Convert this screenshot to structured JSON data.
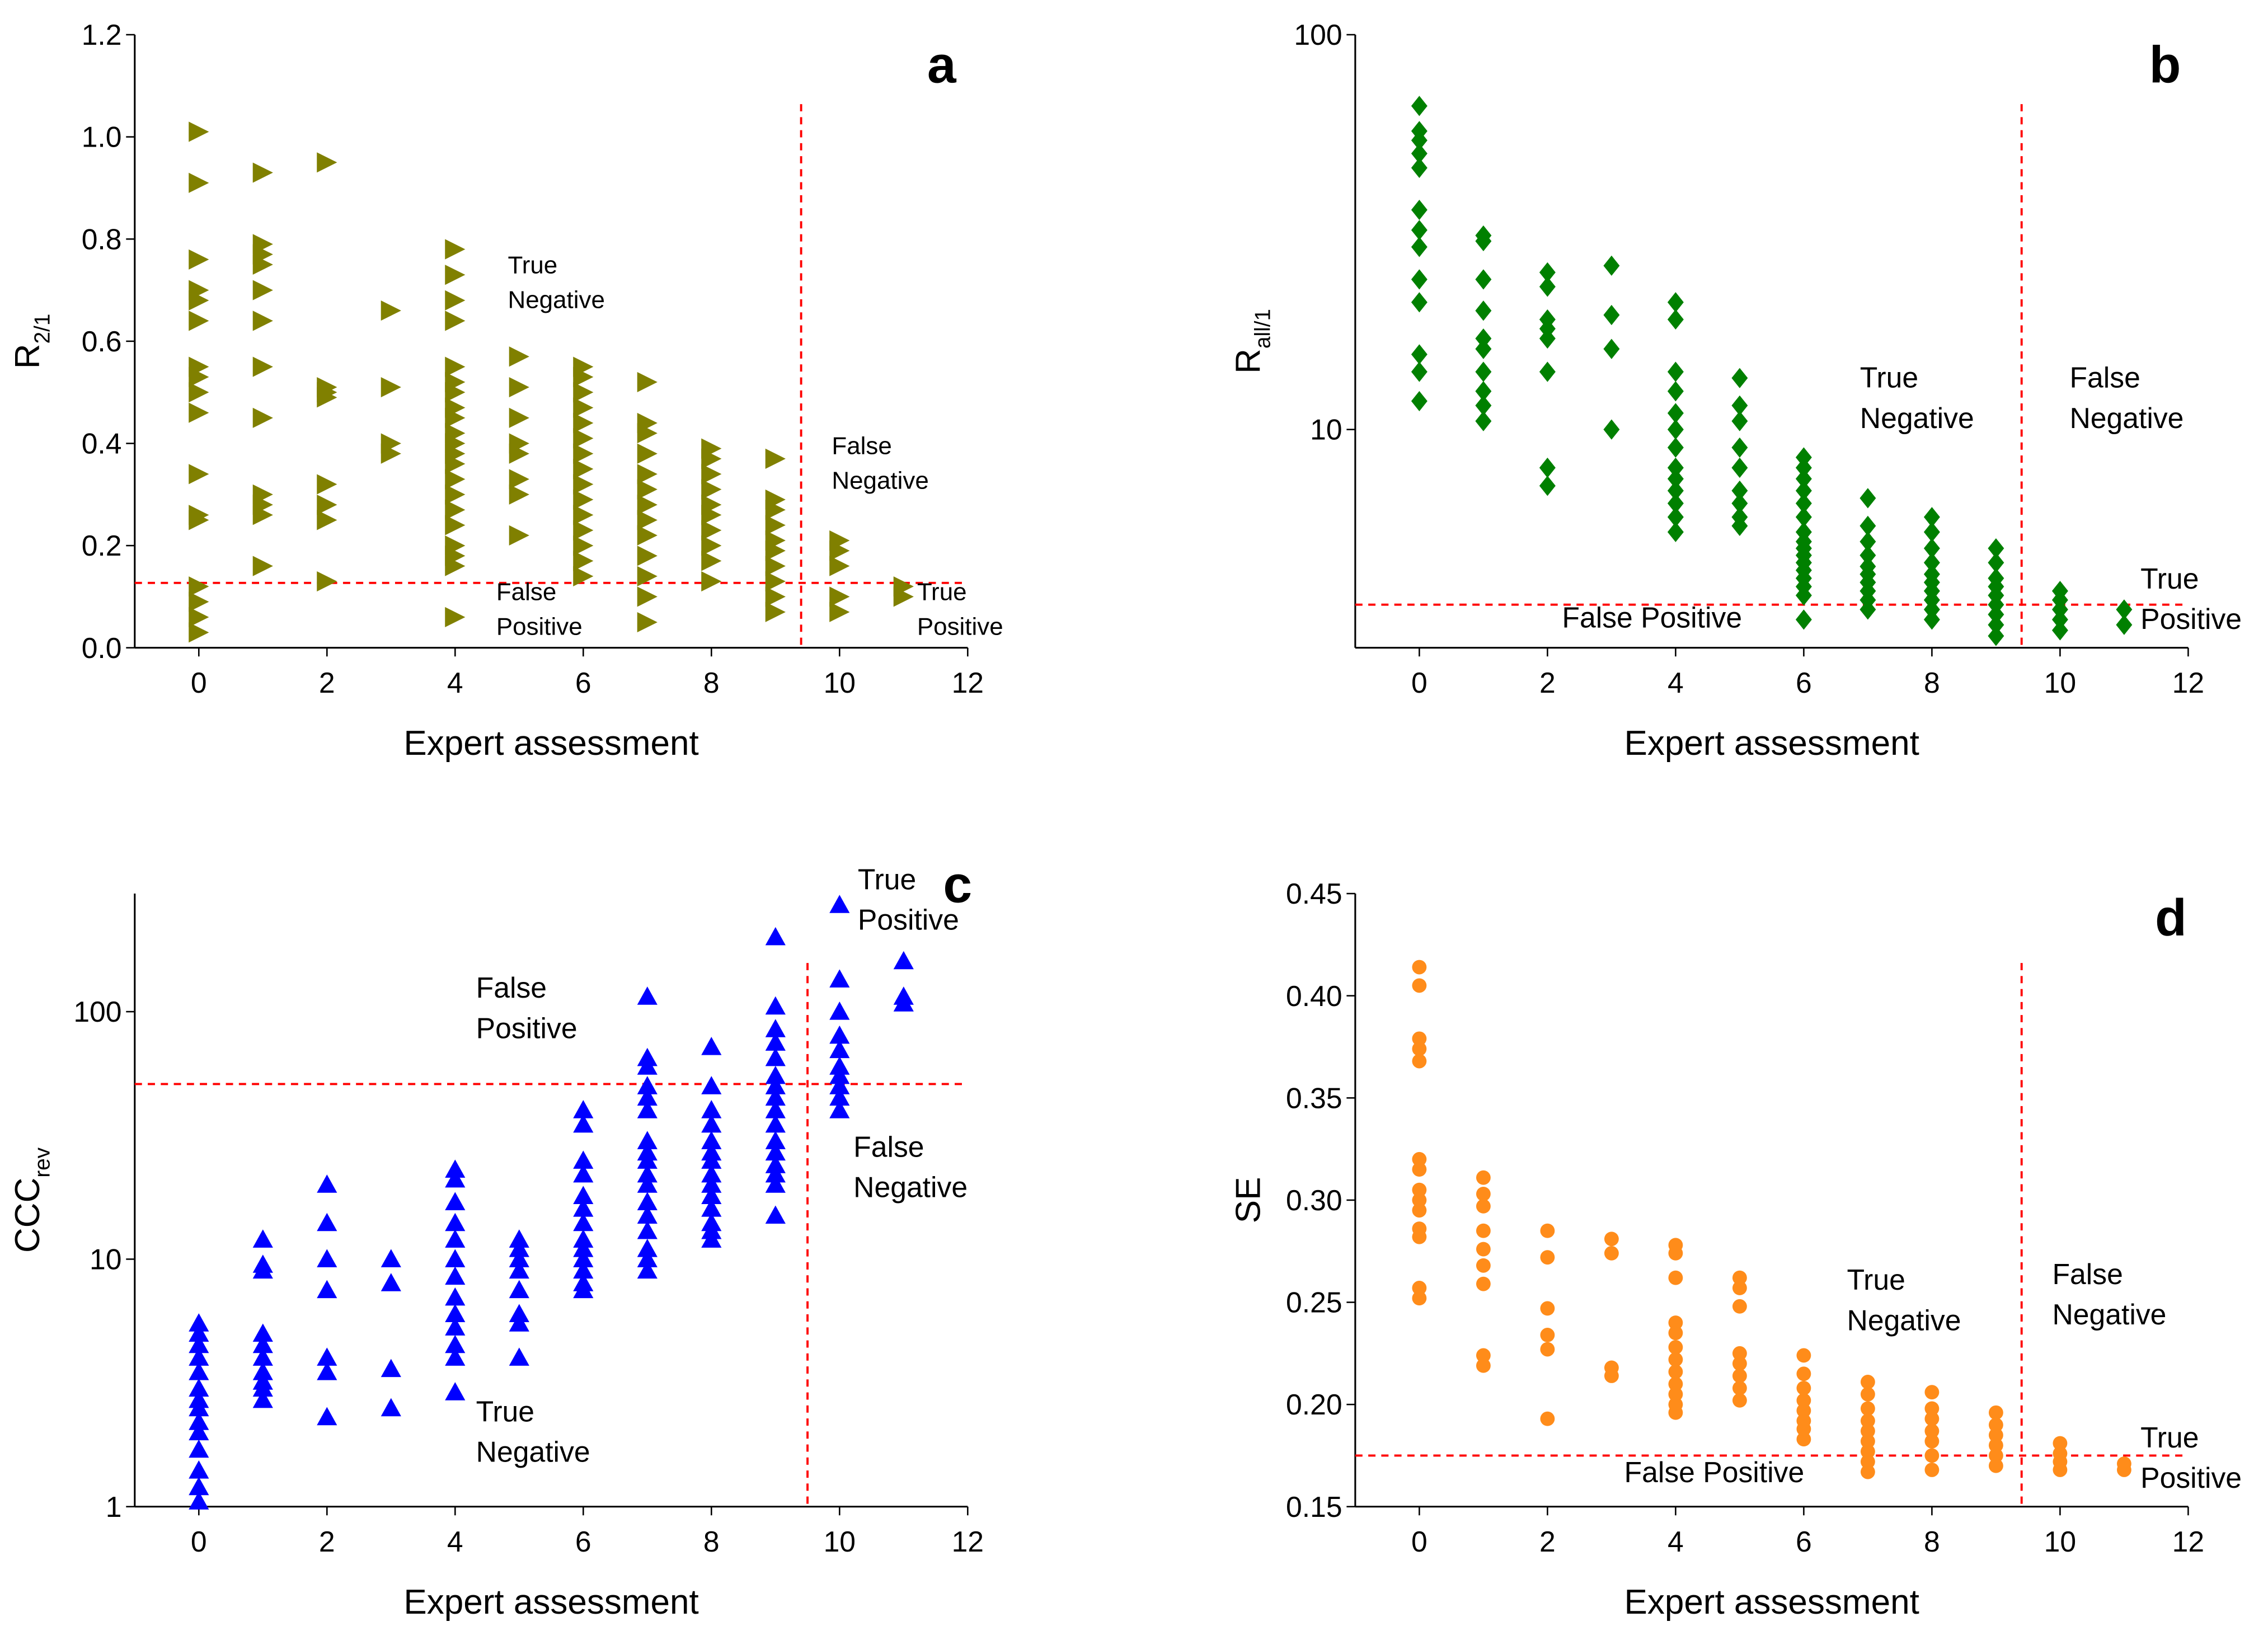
{
  "chart_data": [
    {
      "type": "scatter",
      "label": "a",
      "xlabel": "Expert assessment",
      "ylabel": "R",
      "ylabel_sub": "2/1",
      "marker": "triangle-right",
      "color": "#808000",
      "line_color": "#ff0000",
      "xlim": [
        -1,
        12
      ],
      "xticks": [
        0,
        2,
        4,
        6,
        8,
        10,
        12
      ],
      "ylim": [
        0,
        1.2
      ],
      "yticks": [
        {
          "value": 0,
          "label": "0.0"
        },
        0.2,
        0.4,
        0.6,
        0.8,
        {
          "value": 1,
          "label": "1.0"
        },
        1.2
      ],
      "log": false,
      "hline": 0.127,
      "vline": 9.4,
      "annotations": [
        {
          "lines": [
            "True",
            "Negative"
          ]
        },
        {
          "lines": [
            "False",
            "Negative"
          ]
        },
        {
          "lines": [
            "False",
            "Positive"
          ]
        },
        {
          "lines": [
            "True",
            "Positive"
          ]
        }
      ],
      "x": [
        0,
        0,
        0,
        0,
        0,
        0,
        0,
        0,
        0,
        0,
        0,
        0,
        0,
        0,
        0,
        0,
        0,
        1,
        1,
        1,
        1,
        1,
        1,
        1,
        1,
        1,
        1,
        1,
        1,
        2,
        2,
        2,
        2,
        2,
        2,
        2,
        2,
        3,
        3,
        3,
        3,
        4,
        4,
        4,
        4,
        4,
        4,
        4,
        4,
        4,
        4,
        4,
        4,
        4,
        4,
        4,
        4,
        4,
        4,
        4,
        4,
        4,
        5,
        5,
        5,
        5,
        5,
        5,
        5,
        5,
        6,
        6,
        6,
        6,
        6,
        6,
        6,
        6,
        6,
        6,
        6,
        6,
        6,
        6,
        6,
        7,
        7,
        7,
        7,
        7,
        7,
        7,
        7,
        7,
        7,
        7,
        7,
        7,
        8,
        8,
        8,
        8,
        8,
        8,
        8,
        8,
        8,
        8,
        9,
        9,
        9,
        9,
        9,
        9,
        9,
        9,
        9,
        9,
        10,
        10,
        10,
        10,
        10,
        11,
        11
      ],
      "y": [
        1.01,
        0.91,
        0.76,
        0.7,
        0.68,
        0.64,
        0.55,
        0.53,
        0.5,
        0.46,
        0.34,
        0.26,
        0.25,
        0.12,
        0.09,
        0.06,
        0.03,
        0.93,
        0.79,
        0.77,
        0.75,
        0.7,
        0.64,
        0.55,
        0.45,
        0.3,
        0.28,
        0.26,
        0.16,
        0.95,
        0.51,
        0.5,
        0.49,
        0.32,
        0.28,
        0.25,
        0.13,
        0.66,
        0.51,
        0.4,
        0.38,
        0.78,
        0.73,
        0.68,
        0.64,
        0.55,
        0.52,
        0.5,
        0.47,
        0.45,
        0.42,
        0.4,
        0.38,
        0.36,
        0.33,
        0.3,
        0.27,
        0.24,
        0.2,
        0.18,
        0.16,
        0.06,
        0.57,
        0.51,
        0.45,
        0.4,
        0.38,
        0.33,
        0.3,
        0.22,
        0.55,
        0.53,
        0.5,
        0.47,
        0.44,
        0.41,
        0.38,
        0.35,
        0.32,
        0.29,
        0.26,
        0.23,
        0.2,
        0.17,
        0.14,
        0.52,
        0.44,
        0.42,
        0.38,
        0.34,
        0.31,
        0.28,
        0.25,
        0.22,
        0.18,
        0.14,
        0.1,
        0.05,
        0.39,
        0.37,
        0.34,
        0.31,
        0.28,
        0.26,
        0.23,
        0.2,
        0.17,
        0.13,
        0.37,
        0.29,
        0.27,
        0.24,
        0.21,
        0.19,
        0.16,
        0.13,
        0.1,
        0.07,
        0.21,
        0.19,
        0.16,
        0.1,
        0.07,
        0.12,
        0.1
      ]
    },
    {
      "type": "scatter",
      "label": "b",
      "xlabel": "Expert assessment",
      "ylabel": "R",
      "ylabel_sub": "all/1",
      "marker": "diamond",
      "color": "#008000",
      "line_color": "#ff0000",
      "xlim": [
        -1,
        12
      ],
      "xticks": [
        0,
        2,
        4,
        6,
        8,
        10,
        12
      ],
      "ylim": [
        2.8,
        100
      ],
      "yticks": [
        10,
        100
      ],
      "log": true,
      "hline": 3.6,
      "vline": 9.4,
      "annotations": [
        {
          "lines": [
            "True",
            "Negative"
          ]
        },
        {
          "lines": [
            "False",
            "Negative"
          ]
        },
        {
          "lines": [
            "False Positive"
          ]
        },
        {
          "lines": [
            "True",
            "Positive"
          ]
        }
      ],
      "x": [
        0,
        0,
        0,
        0,
        0,
        0,
        0,
        0,
        0,
        0,
        0,
        0,
        0,
        1,
        1,
        1,
        1,
        1,
        1,
        1,
        1,
        1,
        1,
        2,
        2,
        2,
        2,
        2,
        2,
        2,
        2,
        3,
        3,
        3,
        3,
        4,
        4,
        4,
        4,
        4,
        4,
        4,
        4,
        4,
        4,
        4,
        4,
        4,
        5,
        5,
        5,
        5,
        5,
        5,
        5,
        5,
        5,
        6,
        6,
        6,
        6,
        6,
        6,
        6,
        6,
        6,
        6,
        6,
        6,
        6,
        6,
        6,
        6,
        7,
        7,
        7,
        7,
        7,
        7,
        7,
        7,
        7,
        7,
        8,
        8,
        8,
        8,
        8,
        8,
        8,
        8,
        8,
        8,
        9,
        9,
        9,
        9,
        9,
        9,
        9,
        9,
        9,
        10,
        10,
        10,
        10,
        10,
        11,
        11
      ],
      "y": [
        66,
        57,
        54,
        50,
        46,
        36,
        32,
        29,
        24,
        21,
        15.5,
        14,
        11.8,
        31,
        30,
        24,
        20,
        17,
        16,
        14,
        12.5,
        11.5,
        10.5,
        25,
        23,
        19,
        18,
        17,
        14,
        8,
        7.2,
        26,
        19.5,
        16,
        10,
        21,
        19,
        14,
        12.5,
        11,
        10,
        9,
        8,
        7.5,
        7,
        6.5,
        6,
        5.5,
        13.5,
        11.5,
        10.5,
        9,
        8,
        7,
        6.5,
        6,
        5.7,
        8.5,
        8,
        7.5,
        7,
        6.5,
        6,
        5.5,
        5.2,
        5,
        4.8,
        4.6,
        4.4,
        4.2,
        4,
        3.8,
        3.3,
        6.7,
        5.7,
        5.2,
        4.8,
        4.5,
        4.3,
        4.1,
        3.9,
        3.7,
        3.5,
        6,
        5.5,
        5,
        4.6,
        4.3,
        4.1,
        3.9,
        3.7,
        3.5,
        3.3,
        5,
        4.6,
        4.2,
        4,
        3.8,
        3.6,
        3.4,
        3.2,
        3,
        3.9,
        3.7,
        3.5,
        3.3,
        3.1,
        3.5,
        3.2
      ]
    },
    {
      "type": "scatter",
      "label": "c",
      "xlabel": "Expert assessment",
      "ylabel": "CCC",
      "ylabel_sub": "rev",
      "marker": "triangle-up",
      "color": "#0000ff",
      "line_color": "#ff0000",
      "xlim": [
        -1,
        12
      ],
      "xticks": [
        0,
        2,
        4,
        6,
        8,
        10,
        12
      ],
      "ylim": [
        1,
        300
      ],
      "yticks": [
        1,
        10,
        100
      ],
      "log": true,
      "hline": 51,
      "vline": 9.5,
      "annotations": [
        {
          "lines": [
            "True",
            "Positive"
          ]
        },
        {
          "lines": [
            "False",
            "Positive"
          ]
        },
        {
          "lines": [
            "False",
            "Negative"
          ]
        },
        {
          "lines": [
            "True",
            "Negative"
          ]
        }
      ],
      "x": [
        0,
        0,
        0,
        0,
        0,
        0,
        0,
        0,
        0,
        0,
        0,
        0,
        0,
        0,
        1,
        1,
        1,
        1,
        1,
        1,
        1,
        1,
        1,
        1,
        2,
        2,
        2,
        2,
        2,
        2,
        2,
        3,
        3,
        3,
        3,
        4,
        4,
        4,
        4,
        4,
        4,
        4,
        4,
        4,
        4,
        4,
        4,
        4,
        5,
        5,
        5,
        5,
        5,
        5,
        5,
        5,
        6,
        6,
        6,
        6,
        6,
        6,
        6,
        6,
        6,
        6,
        6,
        6,
        6,
        7,
        7,
        7,
        7,
        7,
        7,
        7,
        7,
        7,
        7,
        7,
        7,
        7,
        7,
        7,
        7,
        7,
        8,
        8,
        8,
        8,
        8,
        8,
        8,
        8,
        8,
        8,
        8,
        8,
        8,
        8,
        9,
        9,
        9,
        9,
        9,
        9,
        9,
        9,
        9,
        9,
        9,
        9,
        9,
        9,
        9,
        9,
        10,
        10,
        10,
        10,
        10,
        10,
        10,
        10,
        10,
        10,
        11,
        11,
        11
      ],
      "y": [
        5.5,
        5,
        4.5,
        4,
        3.5,
        3,
        2.7,
        2.5,
        2.2,
        2,
        1.7,
        1.4,
        1.2,
        1.05,
        12,
        9.5,
        9,
        5,
        4.5,
        4,
        3.5,
        3.2,
        3,
        2.7,
        20,
        14,
        10,
        7.5,
        4,
        3.5,
        2.3,
        10,
        8,
        3.6,
        2.5,
        23,
        21,
        17,
        14,
        12,
        10,
        8.5,
        7,
        6,
        5.3,
        4.5,
        4,
        2.9,
        12,
        11,
        10,
        9,
        7.5,
        6,
        5.5,
        4,
        40,
        35,
        25,
        22,
        18,
        16,
        14,
        12,
        11,
        10,
        9,
        8,
        7.5,
        115,
        65,
        60,
        50,
        45,
        40,
        30,
        27,
        25,
        22,
        20,
        17,
        15,
        13,
        11,
        10,
        9,
        72,
        50,
        40,
        35,
        30,
        27,
        25,
        22,
        20,
        18,
        16,
        14,
        13,
        12,
        200,
        105,
        85,
        75,
        65,
        55,
        50,
        45,
        40,
        35,
        30,
        27,
        24,
        22,
        20,
        15,
        270,
        135,
        100,
        80,
        70,
        60,
        55,
        50,
        45,
        40,
        160,
        115,
        108
      ]
    },
    {
      "type": "scatter",
      "label": "d",
      "xlabel": "Expert assessment",
      "ylabel": "SE",
      "marker": "circle",
      "color": "#ff8c1a",
      "line_color": "#ff0000",
      "xlim": [
        -1,
        12
      ],
      "xticks": [
        0,
        2,
        4,
        6,
        8,
        10,
        12
      ],
      "ylim": [
        0.15,
        0.45
      ],
      "yticks": [
        0.15,
        {
          "value": 0.2,
          "label": "0.20"
        },
        0.25,
        {
          "value": 0.3,
          "label": "0.30"
        },
        0.35,
        {
          "value": 0.4,
          "label": "0.40"
        },
        0.45
      ],
      "log": false,
      "hline": 0.175,
      "vline": 9.4,
      "annotations": [
        {
          "lines": [
            "True",
            "Negative"
          ]
        },
        {
          "lines": [
            "False",
            "Negative"
          ]
        },
        {
          "lines": [
            "False Positive"
          ]
        },
        {
          "lines": [
            "True",
            "Positive"
          ]
        }
      ],
      "x": [
        0,
        0,
        0,
        0,
        0,
        0,
        0,
        0,
        0,
        0,
        0,
        0,
        0,
        0,
        1,
        1,
        1,
        1,
        1,
        1,
        1,
        1,
        1,
        2,
        2,
        2,
        2,
        2,
        2,
        3,
        3,
        3,
        3,
        4,
        4,
        4,
        4,
        4,
        4,
        4,
        4,
        4,
        4,
        4,
        4,
        5,
        5,
        5,
        5,
        5,
        5,
        5,
        5,
        6,
        6,
        6,
        6,
        6,
        6,
        6,
        6,
        7,
        7,
        7,
        7,
        7,
        7,
        7,
        7,
        7,
        8,
        8,
        8,
        8,
        8,
        8,
        8,
        9,
        9,
        9,
        9,
        9,
        9,
        10,
        10,
        10,
        10,
        11,
        11
      ],
      "y": [
        0.414,
        0.405,
        0.379,
        0.374,
        0.368,
        0.32,
        0.315,
        0.305,
        0.3,
        0.295,
        0.286,
        0.282,
        0.257,
        0.252,
        0.311,
        0.303,
        0.297,
        0.285,
        0.276,
        0.268,
        0.259,
        0.224,
        0.219,
        0.285,
        0.272,
        0.247,
        0.234,
        0.227,
        0.193,
        0.281,
        0.274,
        0.218,
        0.214,
        0.278,
        0.274,
        0.262,
        0.24,
        0.235,
        0.228,
        0.222,
        0.216,
        0.21,
        0.205,
        0.2,
        0.196,
        0.262,
        0.257,
        0.248,
        0.225,
        0.22,
        0.214,
        0.208,
        0.202,
        0.224,
        0.215,
        0.208,
        0.202,
        0.197,
        0.192,
        0.188,
        0.183,
        0.211,
        0.205,
        0.198,
        0.192,
        0.187,
        0.182,
        0.177,
        0.172,
        0.167,
        0.206,
        0.198,
        0.193,
        0.187,
        0.182,
        0.175,
        0.168,
        0.196,
        0.19,
        0.185,
        0.18,
        0.175,
        0.17,
        0.181,
        0.176,
        0.172,
        0.168,
        0.171,
        0.168
      ]
    }
  ]
}
